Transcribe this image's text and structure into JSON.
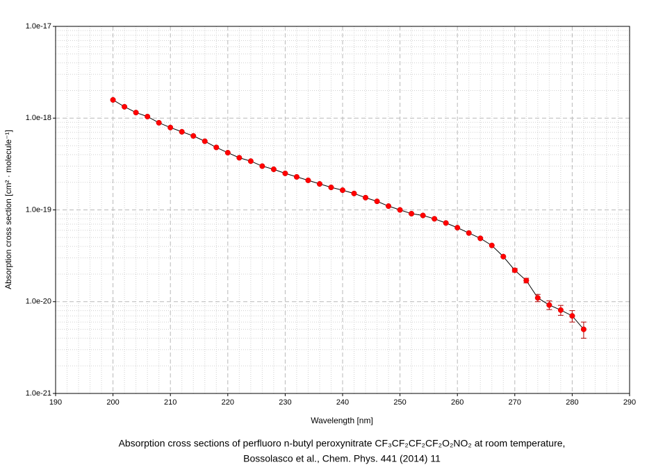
{
  "chart_data": {
    "type": "scatter",
    "title": [
      "Absorption cross sections of perfluoro n-butyl peroxynitrate CF₃CF₂CF₂CF₂O₂NO₂ at room temperature,",
      "Bossolasco et al., Chem. Phys. 441 (2014) 11"
    ],
    "xlabel": "Wavelength [nm]",
    "ylabel": "Absorption cross section [cm² · molecule⁻¹]",
    "x": [
      200,
      202,
      204,
      206,
      208,
      210,
      212,
      214,
      216,
      218,
      220,
      222,
      224,
      226,
      228,
      230,
      232,
      234,
      236,
      238,
      240,
      242,
      244,
      246,
      248,
      250,
      252,
      254,
      256,
      258,
      260,
      262,
      264,
      266,
      268,
      270,
      272,
      274,
      276,
      278,
      280,
      282
    ],
    "values": [
      1.58e-18,
      1.33e-18,
      1.15e-18,
      1.04e-18,
      8.9e-19,
      7.9e-19,
      7.1e-19,
      6.4e-19,
      5.6e-19,
      4.8e-19,
      4.2e-19,
      3.7e-19,
      3.4e-19,
      3e-19,
      2.77e-19,
      2.5e-19,
      2.29e-19,
      2.1e-19,
      1.92e-19,
      1.76e-19,
      1.64e-19,
      1.51e-19,
      1.36e-19,
      1.24e-19,
      1.1e-19,
      1e-19,
      9.1e-20,
      8.7e-20,
      8e-20,
      7.2e-20,
      6.4e-20,
      5.6e-20,
      4.9e-20,
      4.1e-20,
      3.1e-20,
      2.2e-20,
      1.7e-20,
      1.1e-20,
      9.2e-21,
      8.1e-21,
      7e-21,
      5e-21
    ],
    "errors": [
      null,
      null,
      null,
      null,
      null,
      null,
      null,
      null,
      null,
      null,
      null,
      null,
      null,
      null,
      null,
      null,
      null,
      null,
      null,
      null,
      null,
      null,
      null,
      null,
      null,
      null,
      null,
      null,
      null,
      null,
      null,
      null,
      null,
      null,
      null,
      1e-21,
      1e-21,
      1e-21,
      1e-21,
      1e-21,
      1e-21,
      1e-21
    ],
    "color": "#ff0000",
    "line_color": "#000000",
    "error_color": "#b00000",
    "xlim": [
      190,
      290
    ],
    "xticks": [
      190,
      200,
      210,
      220,
      230,
      240,
      250,
      260,
      270,
      280,
      290
    ],
    "ylim": [
      1e-21,
      1e-17
    ],
    "yscale": "log",
    "yticks": [
      {
        "value": 1e-21,
        "label": "1.0e-21"
      },
      {
        "value": 1e-20,
        "label": "1.0e-20"
      },
      {
        "value": 1e-19,
        "label": "1.0e-19"
      },
      {
        "value": 1e-18,
        "label": "1.0e-18"
      },
      {
        "value": 1e-17,
        "label": "1.0e-17"
      }
    ],
    "grid": true,
    "minor_grid": true
  }
}
